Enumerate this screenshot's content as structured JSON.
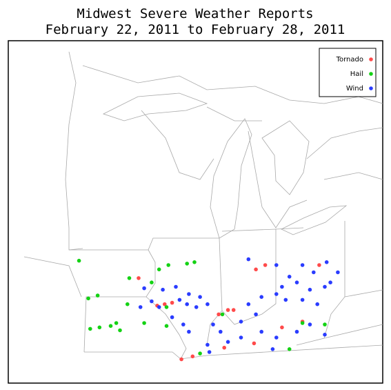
{
  "title": [
    "Midwest Severe Weather Reports",
    "February 22, 2011 to February 28, 2011"
  ],
  "map": {
    "type": "scatter",
    "series": [
      {
        "name": "Tornado",
        "color": "#ff4a4a",
        "points": [
          [
            -91.6,
            41.7
          ],
          [
            -90.2,
            39.9
          ],
          [
            -90.6,
            39.8
          ],
          [
            -89.8,
            40.0
          ],
          [
            -86.8,
            39.5
          ],
          [
            -86.5,
            39.5
          ],
          [
            -87.3,
            39.2
          ],
          [
            -85.3,
            42.3
          ],
          [
            -84.8,
            42.6
          ],
          [
            -81.9,
            42.6
          ],
          [
            -83.9,
            38.3
          ],
          [
            -85.4,
            37.2
          ],
          [
            -87.0,
            36.9
          ],
          [
            -88.7,
            36.3
          ],
          [
            -89.3,
            36.1
          ],
          [
            -82.8,
            38.7
          ]
        ]
      },
      {
        "name": "Hail",
        "color": "#14d214",
        "points": [
          [
            -94.8,
            42.9
          ],
          [
            -92.1,
            41.7
          ],
          [
            -94.3,
            40.3
          ],
          [
            -93.8,
            40.5
          ],
          [
            -90.5,
            42.3
          ],
          [
            -90.0,
            42.6
          ],
          [
            -90.9,
            41.4
          ],
          [
            -89.0,
            42.7
          ],
          [
            -88.6,
            42.8
          ],
          [
            -92.2,
            39.9
          ],
          [
            -92.8,
            38.6
          ],
          [
            -93.1,
            38.4
          ],
          [
            -93.7,
            38.3
          ],
          [
            -94.2,
            38.2
          ],
          [
            -92.6,
            38.1
          ],
          [
            -91.3,
            38.6
          ],
          [
            -90.1,
            39.7
          ],
          [
            -90.1,
            38.4
          ],
          [
            -88.3,
            36.5
          ],
          [
            -83.5,
            36.8
          ],
          [
            -81.6,
            38.5
          ],
          [
            -87.1,
            39.2
          ],
          [
            -82.8,
            38.6
          ]
        ]
      },
      {
        "name": "Wind",
        "color": "#2a3cff",
        "points": [
          [
            -91.3,
            41.0
          ],
          [
            -90.3,
            40.9
          ],
          [
            -89.6,
            41.1
          ],
          [
            -88.9,
            40.6
          ],
          [
            -88.3,
            40.4
          ],
          [
            -87.9,
            39.9
          ],
          [
            -91.5,
            39.7
          ],
          [
            -90.9,
            40.1
          ],
          [
            -89.4,
            40.2
          ],
          [
            -89.0,
            39.9
          ],
          [
            -88.5,
            39.7
          ],
          [
            -89.8,
            39.0
          ],
          [
            -89.2,
            38.5
          ],
          [
            -88.9,
            38.0
          ],
          [
            -85.7,
            43.0
          ],
          [
            -84.2,
            42.6
          ],
          [
            -82.8,
            42.6
          ],
          [
            -82.2,
            42.1
          ],
          [
            -81.5,
            42.8
          ],
          [
            -80.9,
            42.1
          ],
          [
            -81.3,
            41.4
          ],
          [
            -83.5,
            41.8
          ],
          [
            -83.9,
            41.1
          ],
          [
            -83.1,
            41.4
          ],
          [
            -82.4,
            40.9
          ],
          [
            -81.6,
            41.1
          ],
          [
            -83.7,
            40.2
          ],
          [
            -82.8,
            40.2
          ],
          [
            -82.0,
            39.9
          ],
          [
            -85.0,
            40.4
          ],
          [
            -84.2,
            40.6
          ],
          [
            -85.7,
            39.9
          ],
          [
            -85.3,
            39.2
          ],
          [
            -86.1,
            38.7
          ],
          [
            -87.6,
            38.5
          ],
          [
            -87.2,
            38.0
          ],
          [
            -87.9,
            37.1
          ],
          [
            -86.8,
            37.3
          ],
          [
            -86.1,
            37.6
          ],
          [
            -85.0,
            38.0
          ],
          [
            -84.2,
            37.6
          ],
          [
            -83.1,
            38.0
          ],
          [
            -82.4,
            38.5
          ],
          [
            -81.6,
            37.8
          ],
          [
            -84.4,
            36.8
          ],
          [
            -87.8,
            36.6
          ],
          [
            -90.5,
            39.7
          ]
        ]
      }
    ]
  }
}
